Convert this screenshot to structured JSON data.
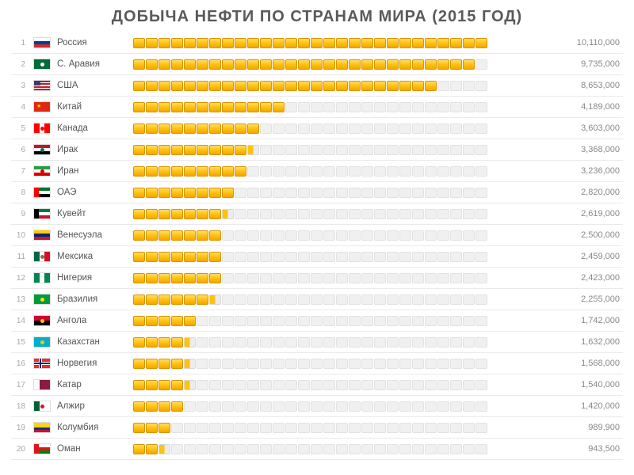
{
  "title": "ДОБЫЧА НЕФТИ ПО СТРАНАМ МИРА (2015 ГОД)",
  "chart": {
    "type": "bar",
    "segment_total": 28,
    "seg_on_color": "#ffc20e",
    "seg_off_color": "#f0f0f0",
    "row_border_color": "#eaeaea",
    "background_color": "#ffffff",
    "title_color": "#5a5a5a",
    "title_fontsize": 20,
    "label_fontsize": 11.5,
    "value_fontsize": 11,
    "value_color": "#888888",
    "max_value": 10110000
  },
  "rows": [
    {
      "rank": "1",
      "country": "Россия",
      "value": "10,110,000",
      "segs": 28,
      "flag": {
        "h3": [
          "#ffffff",
          "#0039a6",
          "#d52b1e"
        ]
      }
    },
    {
      "rank": "2",
      "country": "С. Аравия",
      "value": "9,735,000",
      "segs": 27,
      "flag": {
        "solid": "#006c35",
        "emblem": "#ffffff"
      }
    },
    {
      "rank": "3",
      "country": "США",
      "value": "8,653,000",
      "segs": 24,
      "flag": {
        "us": true
      }
    },
    {
      "rank": "4",
      "country": "Китай",
      "value": "4,189,000",
      "segs": 12,
      "flag": {
        "solid": "#de2910",
        "star": "#ffde00"
      }
    },
    {
      "rank": "5",
      "country": "Канада",
      "value": "3,603,000",
      "segs": 10,
      "flag": {
        "v3": [
          "#ff0000",
          "#ffffff",
          "#ff0000"
        ],
        "emblem": "#ff0000"
      }
    },
    {
      "rank": "6",
      "country": "Ирак",
      "value": "3,368,000",
      "segs": 9.5,
      "flag": {
        "h3": [
          "#ce1126",
          "#ffffff",
          "#000000"
        ],
        "emblem": "#007a3d"
      }
    },
    {
      "rank": "7",
      "country": "Иран",
      "value": "3,236,000",
      "segs": 9,
      "flag": {
        "h3": [
          "#239f40",
          "#ffffff",
          "#da0000"
        ],
        "emblem": "#da0000"
      }
    },
    {
      "rank": "8",
      "country": "ОАЭ",
      "value": "2,820,000",
      "segs": 8,
      "flag": {
        "h3": [
          "#00732f",
          "#ffffff",
          "#000000"
        ],
        "left": "#ff0000"
      }
    },
    {
      "rank": "9",
      "country": "Кувейт",
      "value": "2,619,000",
      "segs": 7.5,
      "flag": {
        "h3": [
          "#007a3d",
          "#ffffff",
          "#ce1126"
        ],
        "left": "#000000"
      }
    },
    {
      "rank": "10",
      "country": "Венесуэла",
      "value": "2,500,000",
      "segs": 7,
      "flag": {
        "h3": [
          "#ffcc00",
          "#00247d",
          "#cf142b"
        ]
      }
    },
    {
      "rank": "11",
      "country": "Мексика",
      "value": "2,459,000",
      "segs": 7,
      "flag": {
        "v3": [
          "#006847",
          "#ffffff",
          "#ce1126"
        ],
        "emblem": "#8a6d3b"
      }
    },
    {
      "rank": "12",
      "country": "Нигерия",
      "value": "2,423,000",
      "segs": 7,
      "flag": {
        "v3": [
          "#008751",
          "#ffffff",
          "#008751"
        ]
      }
    },
    {
      "rank": "13",
      "country": "Бразилия",
      "value": "2,255,000",
      "segs": 6.5,
      "flag": {
        "solid": "#009b3a",
        "emblem": "#fedf00"
      }
    },
    {
      "rank": "14",
      "country": "Ангола",
      "value": "1,742,000",
      "segs": 5,
      "flag": {
        "h2": [
          "#cc092f",
          "#000000"
        ],
        "emblem": "#ffcb00"
      }
    },
    {
      "rank": "15",
      "country": "Казахстан",
      "value": "1,632,000",
      "segs": 4.5,
      "flag": {
        "solid": "#00afca",
        "emblem": "#fec50c"
      }
    },
    {
      "rank": "16",
      "country": "Норвегия",
      "value": "1,568,000",
      "segs": 4.5,
      "flag": {
        "solid": "#ef2b2d",
        "cross": "#002868",
        "cross2": "#ffffff"
      }
    },
    {
      "rank": "17",
      "country": "Катар",
      "value": "1,540,000",
      "segs": 4.5,
      "flag": {
        "v2": [
          "#ffffff",
          "#8d1b3d"
        ]
      }
    },
    {
      "rank": "18",
      "country": "Алжир",
      "value": "1,420,000",
      "segs": 4,
      "flag": {
        "v2": [
          "#006233",
          "#ffffff"
        ],
        "emblem": "#d21034"
      }
    },
    {
      "rank": "19",
      "country": "Колумбия",
      "value": "989,900",
      "segs": 3,
      "flag": {
        "h3w": [
          "#fcd116",
          "#003893",
          "#ce1126"
        ]
      }
    },
    {
      "rank": "20",
      "country": "Оман",
      "value": "943,500",
      "segs": 2.5,
      "flag": {
        "h3": [
          "#ffffff",
          "#db161b",
          "#008000"
        ],
        "left": "#db161b"
      }
    }
  ]
}
